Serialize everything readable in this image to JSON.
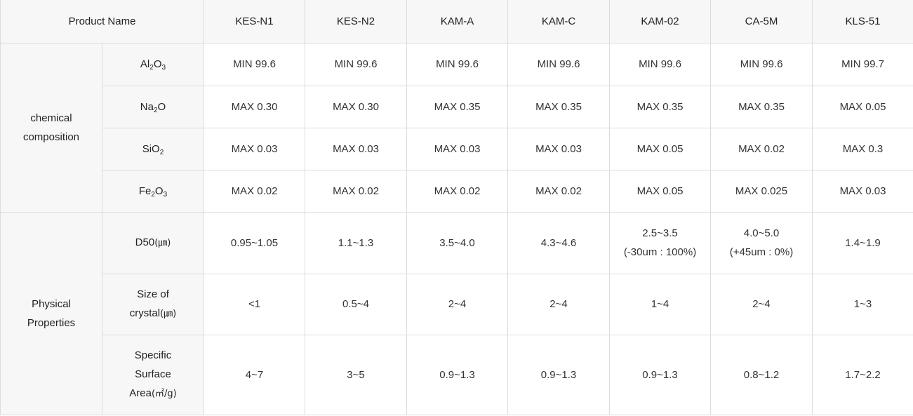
{
  "table": {
    "header_label": "Product Name",
    "products": [
      "KES-N1",
      "KES-N2",
      "KAM-A",
      "KAM-C",
      "KAM-02",
      "CA-5M",
      "KLS-51"
    ],
    "groups": {
      "chemical": [
        "chemical",
        "composition"
      ],
      "physical": [
        "Physical",
        "Properties"
      ]
    },
    "attrs": {
      "al2o3": {
        "a": "Al",
        "s1": "2",
        "b": "O",
        "s2": "3"
      },
      "na2o": {
        "a": "Na",
        "s1": "2",
        "b": "O"
      },
      "sio2": {
        "a": "SiO",
        "s1": "2"
      },
      "fe2o3": {
        "a": "Fe",
        "s1": "2",
        "b": "O",
        "s2": "3"
      },
      "d50": {
        "name": "D50",
        "unit": "(㎛)"
      },
      "crystal": {
        "line1": "Size of",
        "line2": "crystal",
        "unit": "(㎛)"
      },
      "ssa": {
        "line1": "Specific",
        "line2": "Surface",
        "line3": "Area",
        "unit": "(㎡/g)"
      }
    },
    "rows": {
      "al2o3": [
        "MIN 99.6",
        "MIN 99.6",
        "MIN 99.6",
        "MIN 99.6",
        "MIN 99.6",
        "MIN 99.6",
        "MIN 99.7"
      ],
      "na2o": [
        "MAX 0.30",
        "MAX 0.30",
        "MAX 0.35",
        "MAX 0.35",
        "MAX 0.35",
        "MAX 0.35",
        "MAX 0.05"
      ],
      "sio2": [
        "MAX 0.03",
        "MAX 0.03",
        "MAX 0.03",
        "MAX 0.03",
        "MAX 0.05",
        "MAX 0.02",
        "MAX 0.3"
      ],
      "fe2o3": [
        "MAX 0.02",
        "MAX 0.02",
        "MAX 0.02",
        "MAX 0.02",
        "MAX 0.05",
        "MAX 0.025",
        "MAX 0.03"
      ],
      "d50": [
        {
          "v": "0.95~1.05"
        },
        {
          "v": "1.1~1.3"
        },
        {
          "v": "3.5~4.0"
        },
        {
          "v": "4.3~4.6"
        },
        {
          "v": "2.5~3.5",
          "note": "(-30um : 100%)"
        },
        {
          "v": "4.0~5.0",
          "note": "(+45um : 0%)"
        },
        {
          "v": "1.4~1.9"
        }
      ],
      "crystal": [
        "<1",
        "0.5~4",
        "2~4",
        "2~4",
        "1~4",
        "2~4",
        "1~3"
      ],
      "ssa": [
        "4~7",
        "3~5",
        "0.9~1.3",
        "0.9~1.3",
        "0.9~1.3",
        "0.8~1.2",
        "1.7~2.2"
      ]
    }
  }
}
